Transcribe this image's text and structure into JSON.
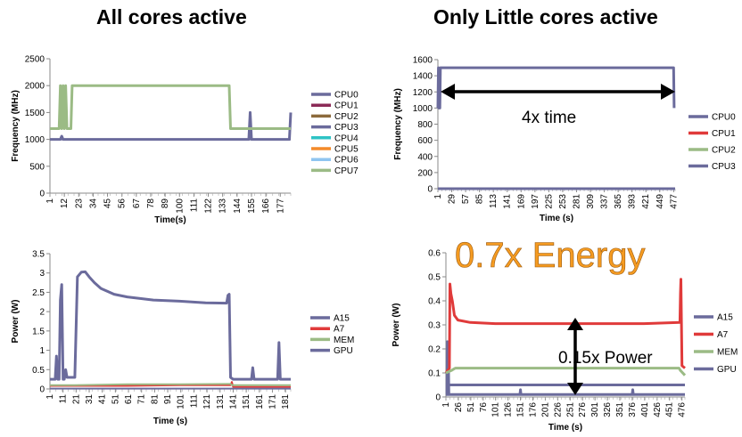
{
  "headings": {
    "left": "All cores active",
    "right": "Only Little cores active"
  },
  "annotations": {
    "time": "4x time",
    "energy": "0.7x Energy",
    "power": "0.15x Power"
  },
  "chart_data": [
    {
      "type": "line",
      "id": "freq_all",
      "xlabel": "Time(s)",
      "ylabel": "Frequency (MHz)",
      "ylim": [
        0,
        2500
      ],
      "yticks": [
        0,
        500,
        1000,
        1500,
        2000,
        2500
      ],
      "xlim": [
        1,
        185
      ],
      "xticks": [
        1,
        12,
        23,
        34,
        45,
        56,
        67,
        78,
        89,
        100,
        111,
        122,
        133,
        144,
        155,
        166,
        177
      ],
      "xtick_labels": [
        "1",
        "12",
        "23",
        "34",
        "45",
        "56",
        "67",
        "78",
        "89",
        "100",
        "111",
        "122",
        "133",
        "144",
        "155",
        "166",
        "177"
      ],
      "legend_position": "right",
      "series": [
        {
          "name": "CPU0",
          "color": "#6b6b9c",
          "width": 3,
          "points": [
            [
              1,
              1000
            ],
            [
              9,
              1000
            ],
            [
              10,
              1060
            ],
            [
              11,
              1000
            ],
            [
              153,
              1000
            ],
            [
              154,
              1500
            ],
            [
              155,
              1000
            ],
            [
              184,
              1000
            ],
            [
              185,
              1500
            ]
          ]
        },
        {
          "name": "CPU1",
          "color": "#8b2a57",
          "width": 2,
          "points": []
        },
        {
          "name": "CPU2",
          "color": "#8c6a3c",
          "width": 2,
          "points": []
        },
        {
          "name": "CPU3",
          "color": "#6b6b9c",
          "width": 2,
          "points": [
            [
              1,
              1000
            ],
            [
              185,
              1000
            ]
          ]
        },
        {
          "name": "CPU4",
          "color": "#2ec3c5",
          "width": 2,
          "points": []
        },
        {
          "name": "CPU5",
          "color": "#f48a2a",
          "width": 2,
          "points": []
        },
        {
          "name": "CPU6",
          "color": "#8fc5f0",
          "width": 2,
          "points": []
        },
        {
          "name": "CPU7",
          "color": "#9bbb85",
          "width": 3,
          "points": [
            [
              1,
              1200
            ],
            [
              8,
              1200
            ],
            [
              9,
              2000
            ],
            [
              10,
              1200
            ],
            [
              11,
              2000
            ],
            [
              12,
              1200
            ],
            [
              13,
              2000
            ],
            [
              14,
              1200
            ],
            [
              17,
              1200
            ],
            [
              18,
              2000
            ],
            [
              138,
              2000
            ],
            [
              139,
              1200
            ],
            [
              185,
              1200
            ]
          ]
        }
      ]
    },
    {
      "type": "line",
      "id": "freq_little",
      "xlabel": "Time (s)",
      "ylabel": "Frequency (MHz)",
      "ylim": [
        0,
        1600
      ],
      "yticks": [
        0,
        200,
        400,
        600,
        800,
        1000,
        1200,
        1400,
        1600
      ],
      "xlim": [
        1,
        480
      ],
      "xticks": [
        1,
        29,
        57,
        85,
        113,
        141,
        169,
        197,
        225,
        253,
        281,
        309,
        337,
        365,
        393,
        421,
        449,
        477
      ],
      "xtick_labels": [
        "1",
        "29",
        "57",
        "85",
        "113",
        "141",
        "169",
        "197",
        "225",
        "253",
        "281",
        "309",
        "337",
        "365",
        "393",
        "421",
        "449",
        "477"
      ],
      "legend_position": "right",
      "series": [
        {
          "name": "CPU0",
          "color": "#6b6b9c",
          "width": 3,
          "points": [
            [
              1,
              0
            ],
            [
              480,
              0
            ]
          ]
        },
        {
          "name": "CPU1",
          "color": "#e03a3a",
          "width": 2,
          "points": []
        },
        {
          "name": "CPU2",
          "color": "#9bbb85",
          "width": 2,
          "points": []
        },
        {
          "name": "CPU3",
          "color": "#6b6b9c",
          "width": 3,
          "points": [
            [
              1,
              1000
            ],
            [
              2,
              1500
            ],
            [
              3,
              1000
            ],
            [
              4,
              1400
            ],
            [
              5,
              1000
            ],
            [
              6,
              1500
            ],
            [
              7,
              1500
            ],
            [
              477,
              1500
            ],
            [
              478,
              1000
            ]
          ]
        }
      ]
    },
    {
      "type": "line",
      "id": "power_all",
      "xlabel": "Time (s)",
      "ylabel": "Power (W)",
      "ylim": [
        0,
        3.5
      ],
      "yticks": [
        0,
        0.5,
        1,
        1.5,
        2,
        2.5,
        3,
        3.5
      ],
      "ytick_labels": [
        "0",
        "0.5",
        "1",
        "1.5",
        "2",
        "2.5",
        "3",
        "3.5"
      ],
      "xlim": [
        1,
        185
      ],
      "xticks": [
        1,
        11,
        21,
        31,
        41,
        51,
        61,
        71,
        81,
        91,
        101,
        111,
        121,
        131,
        141,
        151,
        161,
        171,
        181
      ],
      "xtick_labels": [
        "1",
        "11",
        "21",
        "31",
        "41",
        "51",
        "61",
        "71",
        "81",
        "91",
        "101",
        "111",
        "121",
        "131",
        "141",
        "151",
        "161",
        "171",
        "181"
      ],
      "legend_position": "right",
      "series": [
        {
          "name": "A15",
          "color": "#6b6b9c",
          "width": 3,
          "points": [
            [
              1,
              0.25
            ],
            [
              5,
              0.25
            ],
            [
              6,
              0.85
            ],
            [
              7,
              0.25
            ],
            [
              8,
              0.25
            ],
            [
              9,
              2.3
            ],
            [
              10,
              2.7
            ],
            [
              11,
              0.25
            ],
            [
              12,
              0.25
            ],
            [
              13,
              0.5
            ],
            [
              14,
              0.3
            ],
            [
              20,
              0.3
            ],
            [
              22,
              2.9
            ],
            [
              25,
              3.02
            ],
            [
              28,
              3.03
            ],
            [
              31,
              2.9
            ],
            [
              35,
              2.75
            ],
            [
              40,
              2.6
            ],
            [
              50,
              2.45
            ],
            [
              60,
              2.38
            ],
            [
              80,
              2.3
            ],
            [
              100,
              2.27
            ],
            [
              120,
              2.23
            ],
            [
              136,
              2.22
            ],
            [
              137,
              2.42
            ],
            [
              138,
              2.45
            ],
            [
              139,
              0.3
            ],
            [
              141,
              0.25
            ],
            [
              155,
              0.25
            ],
            [
              156,
              0.55
            ],
            [
              157,
              0.25
            ],
            [
              175,
              0.25
            ],
            [
              176,
              1.2
            ],
            [
              177,
              0.25
            ],
            [
              185,
              0.25
            ]
          ]
        },
        {
          "name": "A7",
          "color": "#e03a3a",
          "width": 2,
          "points": [
            [
              1,
              0.08
            ],
            [
              20,
              0.08
            ],
            [
              60,
              0.08
            ],
            [
              100,
              0.1
            ],
            [
              139,
              0.1
            ],
            [
              140,
              0.18
            ],
            [
              141,
              0.05
            ],
            [
              185,
              0.05
            ]
          ]
        },
        {
          "name": "MEM",
          "color": "#9bbb85",
          "width": 2,
          "points": [
            [
              1,
              0.1
            ],
            [
              20,
              0.1
            ],
            [
              60,
              0.12
            ],
            [
              100,
              0.12
            ],
            [
              139,
              0.13
            ],
            [
              140,
              0.1
            ],
            [
              185,
              0.1
            ]
          ]
        },
        {
          "name": "GPU",
          "color": "#6b6b9c",
          "width": 2,
          "points": [
            [
              1,
              0.01
            ],
            [
              185,
              0.01
            ]
          ]
        }
      ]
    },
    {
      "type": "line",
      "id": "power_little",
      "xlabel": "Time (s)",
      "ylabel": "Power (W)",
      "ylim": [
        0,
        0.6
      ],
      "yticks": [
        0,
        0.1,
        0.2,
        0.3,
        0.4,
        0.5,
        0.6
      ],
      "ytick_labels": [
        "0",
        "0.1",
        "0.2",
        "0.3",
        "0.4",
        "0.5",
        "0.6"
      ],
      "xlim": [
        1,
        482
      ],
      "xticks": [
        1,
        26,
        51,
        76,
        101,
        126,
        151,
        176,
        201,
        226,
        251,
        276,
        301,
        326,
        351,
        376,
        401,
        426,
        451,
        476
      ],
      "xtick_labels": [
        "1",
        "26",
        "51",
        "76",
        "101",
        "126",
        "151",
        "176",
        "201",
        "226",
        "251",
        "276",
        "301",
        "326",
        "351",
        "376",
        "401",
        "426",
        "451",
        "476"
      ],
      "legend_position": "right",
      "series": [
        {
          "name": "A15",
          "color": "#6b6b9c",
          "width": 3,
          "points": [
            [
              1,
              0.01
            ],
            [
              3,
              0.01
            ],
            [
              4,
              0.23
            ],
            [
              5,
              0.01
            ],
            [
              6,
              0.15
            ],
            [
              7,
              0.01
            ],
            [
              150,
              0.01
            ],
            [
              151,
              0.03
            ],
            [
              152,
              0.01
            ],
            [
              376,
              0.01
            ],
            [
              377,
              0.03
            ],
            [
              378,
              0.01
            ],
            [
              482,
              0.01
            ]
          ]
        },
        {
          "name": "A7",
          "color": "#e03a3a",
          "width": 3,
          "points": [
            [
              1,
              0.1
            ],
            [
              8,
              0.12
            ],
            [
              9,
              0.47
            ],
            [
              11,
              0.43
            ],
            [
              14,
              0.4
            ],
            [
              18,
              0.34
            ],
            [
              25,
              0.32
            ],
            [
              50,
              0.31
            ],
            [
              100,
              0.305
            ],
            [
              200,
              0.305
            ],
            [
              300,
              0.305
            ],
            [
              400,
              0.305
            ],
            [
              472,
              0.31
            ],
            [
              473,
              0.43
            ],
            [
              474,
              0.49
            ],
            [
              476,
              0.13
            ],
            [
              482,
              0.12
            ]
          ]
        },
        {
          "name": "MEM",
          "color": "#9bbb85",
          "width": 3,
          "points": [
            [
              1,
              0.1
            ],
            [
              12,
              0.11
            ],
            [
              20,
              0.12
            ],
            [
              100,
              0.12
            ],
            [
              300,
              0.12
            ],
            [
              470,
              0.12
            ],
            [
              473,
              0.11
            ],
            [
              482,
              0.09
            ]
          ]
        },
        {
          "name": "GPU",
          "color": "#6b6b9c",
          "width": 3,
          "points": [
            [
              1,
              0.05
            ],
            [
              482,
              0.05
            ]
          ]
        }
      ]
    }
  ]
}
